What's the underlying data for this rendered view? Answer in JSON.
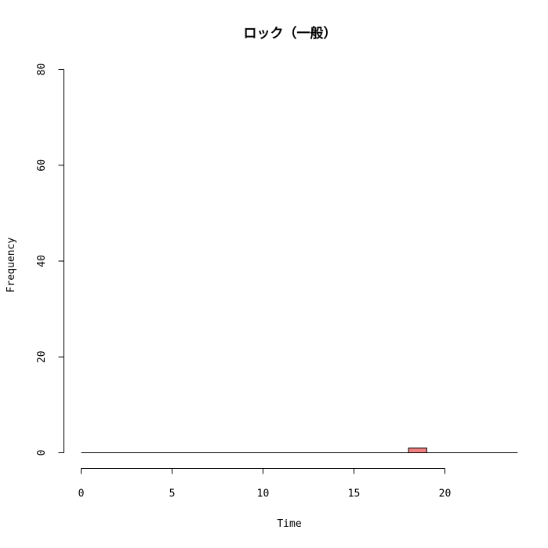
{
  "chart_data": {
    "type": "bar",
    "title": "ロック（一般）",
    "xlabel": "Time",
    "ylabel": "Frequency",
    "xlim": [
      0,
      24
    ],
    "ylim": [
      0,
      80
    ],
    "x_ticks": [
      0,
      5,
      10,
      15,
      20
    ],
    "y_ticks": [
      0,
      20,
      40,
      60,
      80
    ],
    "bin_width": 1,
    "bins": [
      {
        "x": 0,
        "value": 0
      },
      {
        "x": 1,
        "value": 0
      },
      {
        "x": 2,
        "value": 0
      },
      {
        "x": 3,
        "value": 0
      },
      {
        "x": 4,
        "value": 0
      },
      {
        "x": 5,
        "value": 0
      },
      {
        "x": 6,
        "value": 0
      },
      {
        "x": 7,
        "value": 0
      },
      {
        "x": 8,
        "value": 0
      },
      {
        "x": 9,
        "value": 0
      },
      {
        "x": 10,
        "value": 0
      },
      {
        "x": 11,
        "value": 0
      },
      {
        "x": 12,
        "value": 0
      },
      {
        "x": 13,
        "value": 0
      },
      {
        "x": 14,
        "value": 0
      },
      {
        "x": 15,
        "value": 0
      },
      {
        "x": 16,
        "value": 0
      },
      {
        "x": 17,
        "value": 0
      },
      {
        "x": 18,
        "value": 1
      },
      {
        "x": 19,
        "value": 0
      },
      {
        "x": 20,
        "value": 0
      },
      {
        "x": 21,
        "value": 0
      },
      {
        "x": 22,
        "value": 0
      },
      {
        "x": 23,
        "value": 0
      }
    ],
    "bar_color": "#F08080",
    "grid": false
  }
}
